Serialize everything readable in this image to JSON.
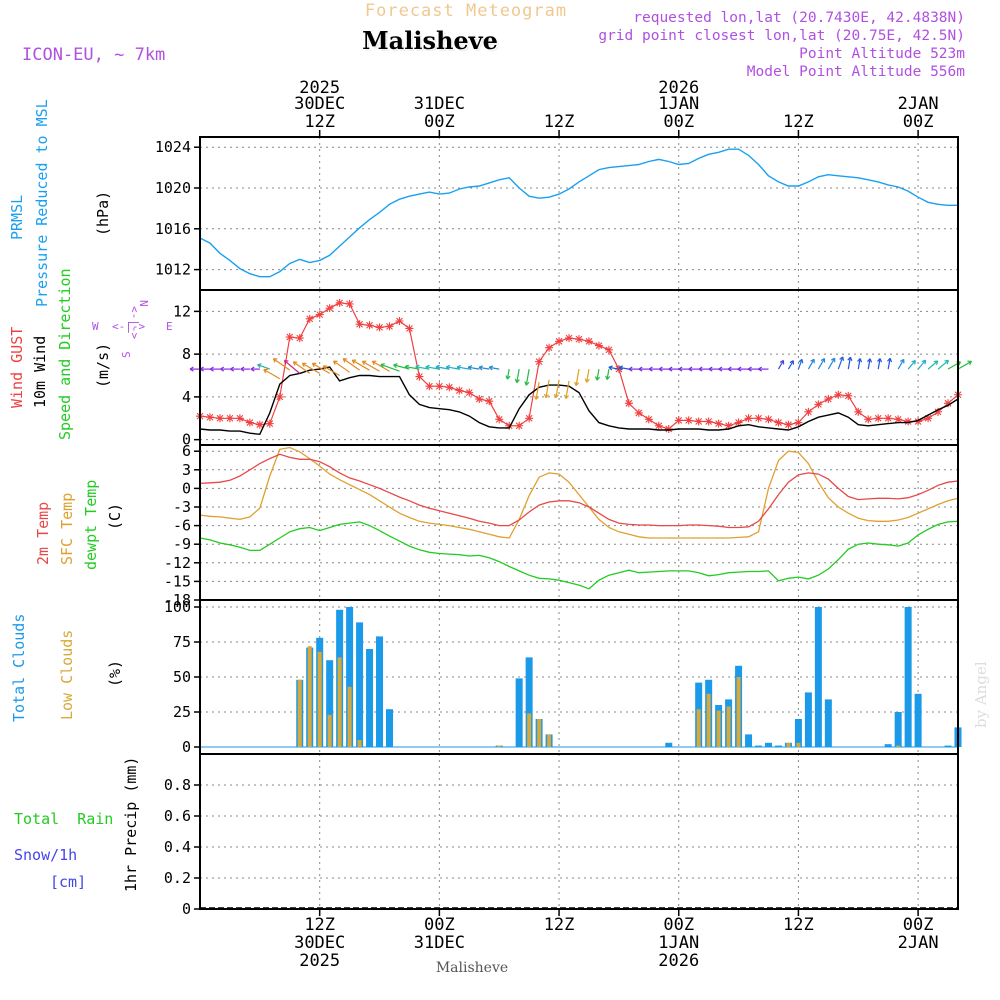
{
  "header": {
    "super_title": "Forecast Meteogram",
    "location": "Malisheve",
    "model": "ICON-EU, ~ 7km",
    "requested": "requested lon,lat (20.7430E, 42.4838N)",
    "gridpoint": "grid point closest lon,lat (20.75E, 42.5N)",
    "point_alt": "Point Altitude 523m",
    "model_alt": "Model Point Altitude 556m",
    "footer_location": "Malisheve",
    "watermark": "by Angel"
  },
  "colors": {
    "pressure": "#1aa0f0",
    "gust": "#f04040",
    "wind": "#000000",
    "wind_label": "#22cc22",
    "temp2m": "#e84848",
    "sfc": "#e0a030",
    "dewpt": "#22cc22",
    "total_cloud": "#1a9ae8",
    "low_cloud": "#d8a838",
    "rain": "#22cc22",
    "snow": "#4444ee",
    "meta": "#b050e0",
    "grid": "#888888"
  },
  "time_axis": {
    "top_ticks": [
      {
        "h": 12,
        "l1": "2025",
        "l2": "30DEC",
        "l3": "12Z"
      },
      {
        "h": 24,
        "l1": "",
        "l2": "31DEC",
        "l3": "00Z"
      },
      {
        "h": 36,
        "l1": "",
        "l2": "",
        "l3": "12Z"
      },
      {
        "h": 48,
        "l1": "2026",
        "l2": "1JAN",
        "l3": "00Z"
      },
      {
        "h": 60,
        "l1": "",
        "l2": "",
        "l3": "12Z"
      },
      {
        "h": 72,
        "l1": "",
        "l2": "2JAN",
        "l3": "00Z"
      }
    ],
    "bottom_ticks": [
      {
        "h": 12,
        "l1": "12Z",
        "l2": "30DEC",
        "l3": "2025"
      },
      {
        "h": 24,
        "l1": "00Z",
        "l2": "31DEC",
        "l3": ""
      },
      {
        "h": 36,
        "l1": "12Z",
        "l2": "",
        "l3": ""
      },
      {
        "h": 48,
        "l1": "00Z",
        "l2": "1JAN",
        "l3": "2026"
      },
      {
        "h": 60,
        "l1": "12Z",
        "l2": "",
        "l3": ""
      },
      {
        "h": 72,
        "l1": "00Z",
        "l2": "2JAN",
        "l3": ""
      }
    ],
    "start_hour": 0,
    "end_hour": 76
  },
  "labels": {
    "pressure": [
      "PRMSL",
      "Pressure Reduced to MSL",
      "(hPa)"
    ],
    "wind": [
      "Wind GUST",
      "10m Wind",
      "Speed and Direction",
      "(m/s)"
    ],
    "compass": {
      "n": "N",
      "s": "S",
      "w": "W",
      "e": "E",
      "arrows": "<-|->"
    },
    "temp": [
      "2m Temp",
      "SFC Temp",
      "dewpt Temp",
      "(C)"
    ],
    "cloud": [
      "Total Clouds",
      "Low Clouds",
      "(%)"
    ],
    "precip": [
      "Total  Rain",
      "Snow/1h",
      "[cm]",
      "1hr Precip (mm)"
    ]
  },
  "chart_data": [
    {
      "type": "line",
      "title": "PRMSL Pressure Reduced to MSL",
      "ylabel": "hPa",
      "ylim": [
        1010,
        1025
      ],
      "yticks": [
        1012,
        1016,
        1020,
        1024
      ],
      "x": [
        0,
        1,
        2,
        3,
        4,
        5,
        6,
        7,
        8,
        9,
        10,
        11,
        12,
        13,
        14,
        15,
        16,
        17,
        18,
        19,
        20,
        21,
        22,
        23,
        24,
        25,
        26,
        27,
        28,
        29,
        30,
        31,
        32,
        33,
        34,
        35,
        36,
        37,
        38,
        39,
        40,
        41,
        42,
        43,
        44,
        45,
        46,
        47,
        48,
        49,
        50,
        51,
        52,
        53,
        54,
        55,
        56,
        57,
        58,
        59,
        60,
        61,
        62,
        63,
        64,
        65,
        66,
        67,
        68,
        69,
        70,
        71,
        72,
        73,
        74,
        75,
        76
      ],
      "series": [
        {
          "name": "PRMSL",
          "values": [
            1015.1,
            1014.6,
            1013.6,
            1012.9,
            1012.1,
            1011.6,
            1011.3,
            1011.3,
            1011.8,
            1012.6,
            1013.0,
            1012.7,
            1012.9,
            1013.4,
            1014.3,
            1015.2,
            1016.1,
            1016.9,
            1017.6,
            1018.4,
            1018.9,
            1019.2,
            1019.4,
            1019.6,
            1019.4,
            1019.5,
            1019.9,
            1020.1,
            1020.2,
            1020.5,
            1020.8,
            1021.0,
            1020.0,
            1019.2,
            1019.0,
            1019.1,
            1019.4,
            1019.9,
            1020.6,
            1021.2,
            1021.8,
            1022.0,
            1022.1,
            1022.2,
            1022.3,
            1022.6,
            1022.8,
            1022.6,
            1022.3,
            1022.4,
            1022.9,
            1023.3,
            1023.5,
            1023.8,
            1023.8,
            1023.2,
            1022.3,
            1021.2,
            1020.6,
            1020.2,
            1020.2,
            1020.6,
            1021.1,
            1021.3,
            1021.2,
            1021.1,
            1021.0,
            1020.8,
            1020.6,
            1020.3,
            1020.1,
            1019.7,
            1019.1,
            1018.6,
            1018.4,
            1018.3,
            1018.3
          ]
        }
      ]
    },
    {
      "type": "line",
      "title": "Wind GUST / 10m Wind Speed and Direction",
      "ylabel": "m/s",
      "ylim": [
        -0.5,
        14
      ],
      "yticks": [
        0,
        4,
        8,
        12
      ],
      "x": [
        0,
        1,
        2,
        3,
        4,
        5,
        6,
        7,
        8,
        9,
        10,
        11,
        12,
        13,
        14,
        15,
        16,
        17,
        18,
        19,
        20,
        21,
        22,
        23,
        24,
        25,
        26,
        27,
        28,
        29,
        30,
        31,
        32,
        33,
        34,
        35,
        36,
        37,
        38,
        39,
        40,
        41,
        42,
        43,
        44,
        45,
        46,
        47,
        48,
        49,
        50,
        51,
        52,
        53,
        54,
        55,
        56,
        57,
        58,
        59,
        60,
        61,
        62,
        63,
        64,
        65,
        66,
        67,
        68,
        69,
        70,
        71,
        72,
        73,
        74,
        75,
        76
      ],
      "series": [
        {
          "name": "Wind GUST",
          "values": [
            2.2,
            2.1,
            2.0,
            2.0,
            2.0,
            1.6,
            1.4,
            1.5,
            4.0,
            9.6,
            9.5,
            11.3,
            11.7,
            12.3,
            12.8,
            12.7,
            10.8,
            10.7,
            10.5,
            10.6,
            11.1,
            10.4,
            5.9,
            5.0,
            5.0,
            4.9,
            4.6,
            4.4,
            3.8,
            3.6,
            1.9,
            1.3,
            1.3,
            2.0,
            7.3,
            8.6,
            9.2,
            9.5,
            9.4,
            9.2,
            8.8,
            8.4,
            6.6,
            3.4,
            2.5,
            1.9,
            1.3,
            1.0,
            1.8,
            1.8,
            1.7,
            1.7,
            1.5,
            1.3,
            1.6,
            2.0,
            2.0,
            1.9,
            1.6,
            1.4,
            1.6,
            2.6,
            3.3,
            3.8,
            4.2,
            4.1,
            2.6,
            1.9,
            2.0,
            2.0,
            1.9,
            1.7,
            1.7,
            2.0,
            2.6,
            3.4,
            4.2
          ]
        },
        {
          "name": "10m Wind",
          "values": [
            1.0,
            0.9,
            0.9,
            0.8,
            0.8,
            0.6,
            0.5,
            2.5,
            5.2,
            6.0,
            6.2,
            6.5,
            6.6,
            6.8,
            5.5,
            5.8,
            6.0,
            6.0,
            5.9,
            5.9,
            5.9,
            4.2,
            3.3,
            3.0,
            2.9,
            2.8,
            2.6,
            2.2,
            1.6,
            1.2,
            1.1,
            1.1,
            2.9,
            4.2,
            4.9,
            5.1,
            5.1,
            5.0,
            4.4,
            2.7,
            1.6,
            1.3,
            1.1,
            1.0,
            1.0,
            1.0,
            0.9,
            0.9,
            1.0,
            1.0,
            1.0,
            0.9,
            0.9,
            1.0,
            1.3,
            1.4,
            1.2,
            1.1,
            1.0,
            0.9,
            1.2,
            1.7,
            2.1,
            2.3,
            2.5,
            2.1,
            1.4,
            1.3,
            1.4,
            1.5,
            1.6,
            1.6,
            1.8,
            2.3,
            2.8,
            3.2,
            3.8
          ]
        }
      ]
    },
    {
      "type": "line",
      "title": "2m Temp / SFC Temp / dewpt Temp",
      "ylabel": "C",
      "ylim": [
        -18,
        7
      ],
      "yticks": [
        -18,
        -15,
        -12,
        -9,
        -6,
        -3,
        0,
        3,
        6
      ],
      "x": [
        0,
        1,
        2,
        3,
        4,
        5,
        6,
        7,
        8,
        9,
        10,
        11,
        12,
        13,
        14,
        15,
        16,
        17,
        18,
        19,
        20,
        21,
        22,
        23,
        24,
        25,
        26,
        27,
        28,
        29,
        30,
        31,
        32,
        33,
        34,
        35,
        36,
        37,
        38,
        39,
        40,
        41,
        42,
        43,
        44,
        45,
        46,
        47,
        48,
        49,
        50,
        51,
        52,
        53,
        54,
        55,
        56,
        57,
        58,
        59,
        60,
        61,
        62,
        63,
        64,
        65,
        66,
        67,
        68,
        69,
        70,
        71,
        72,
        73,
        74,
        75,
        76
      ],
      "series": [
        {
          "name": "2m Temp",
          "values": [
            0.8,
            0.9,
            1.0,
            1.3,
            2.0,
            3.0,
            4.0,
            4.8,
            5.5,
            5.0,
            4.7,
            4.7,
            4.3,
            3.5,
            2.5,
            1.7,
            1.2,
            0.6,
            0.0,
            -0.7,
            -1.4,
            -2.0,
            -2.7,
            -3.2,
            -3.6,
            -4.0,
            -4.4,
            -4.8,
            -5.3,
            -5.6,
            -6.0,
            -6.0,
            -5.1,
            -3.8,
            -2.7,
            -2.2,
            -2.0,
            -2.0,
            -2.3,
            -3.0,
            -4.0,
            -5.0,
            -5.6,
            -5.8,
            -5.9,
            -5.9,
            -6.0,
            -6.0,
            -6.0,
            -5.9,
            -5.9,
            -6.0,
            -6.1,
            -6.3,
            -6.3,
            -6.2,
            -5.3,
            -3.3,
            -1.0,
            1.0,
            2.2,
            2.5,
            2.3,
            1.5,
            0.0,
            -1.3,
            -1.8,
            -1.7,
            -1.6,
            -1.6,
            -1.7,
            -1.5,
            -1.0,
            -0.3,
            0.5,
            1.0,
            1.2
          ]
        },
        {
          "name": "SFC Temp",
          "values": [
            -4.3,
            -4.5,
            -4.6,
            -4.8,
            -5.0,
            -4.6,
            -3.2,
            2.0,
            6.3,
            6.6,
            5.9,
            4.8,
            3.6,
            2.3,
            1.4,
            0.6,
            -0.2,
            -1.0,
            -2.0,
            -3.0,
            -4.0,
            -4.7,
            -5.3,
            -5.6,
            -5.8,
            -6.0,
            -6.3,
            -6.6,
            -7.0,
            -7.4,
            -7.8,
            -8.0,
            -5.0,
            -1.2,
            1.8,
            2.5,
            2.3,
            1.0,
            -1.0,
            -3.0,
            -5.0,
            -6.3,
            -7.0,
            -7.4,
            -7.8,
            -8.0,
            -8.0,
            -8.0,
            -8.0,
            -8.0,
            -8.0,
            -8.0,
            -8.0,
            -8.0,
            -7.9,
            -7.8,
            -7.0,
            0.0,
            4.5,
            6.0,
            5.8,
            4.0,
            1.0,
            -1.5,
            -3.0,
            -4.0,
            -4.8,
            -5.2,
            -5.3,
            -5.3,
            -5.1,
            -4.7,
            -4.0,
            -3.3,
            -2.6,
            -2.0,
            -1.6
          ]
        },
        {
          "name": "dewpt Temp",
          "values": [
            -8.0,
            -8.3,
            -8.8,
            -9.1,
            -9.5,
            -10.0,
            -10.0,
            -9.0,
            -8.0,
            -7.0,
            -6.5,
            -6.3,
            -6.8,
            -6.3,
            -5.8,
            -5.6,
            -5.4,
            -6.0,
            -6.8,
            -7.7,
            -8.5,
            -9.3,
            -9.9,
            -10.3,
            -10.5,
            -10.6,
            -10.7,
            -10.9,
            -10.8,
            -11.2,
            -11.8,
            -12.6,
            -13.3,
            -14.0,
            -14.5,
            -14.6,
            -14.8,
            -15.2,
            -15.6,
            -16.2,
            -14.8,
            -14.0,
            -13.6,
            -13.2,
            -13.6,
            -13.5,
            -13.4,
            -13.3,
            -13.3,
            -13.3,
            -13.6,
            -14.1,
            -13.9,
            -13.6,
            -13.5,
            -13.4,
            -13.4,
            -13.3,
            -14.9,
            -14.5,
            -14.3,
            -14.6,
            -14.0,
            -13.0,
            -11.5,
            -9.8,
            -9.0,
            -8.8,
            -9.0,
            -9.1,
            -9.3,
            -8.8,
            -7.5,
            -6.6,
            -5.8,
            -5.4,
            -5.3
          ]
        }
      ]
    },
    {
      "type": "bar",
      "title": "Total Clouds / Low Clouds",
      "ylabel": "%",
      "ylim": [
        -5,
        105
      ],
      "yticks": [
        0,
        25,
        50,
        75,
        100
      ],
      "x": [
        0,
        1,
        2,
        3,
        4,
        5,
        6,
        7,
        8,
        9,
        10,
        11,
        12,
        13,
        14,
        15,
        16,
        17,
        18,
        19,
        20,
        21,
        22,
        23,
        24,
        25,
        26,
        27,
        28,
        29,
        30,
        31,
        32,
        33,
        34,
        35,
        36,
        37,
        38,
        39,
        40,
        41,
        42,
        43,
        44,
        45,
        46,
        47,
        48,
        49,
        50,
        51,
        52,
        53,
        54,
        55,
        56,
        57,
        58,
        59,
        60,
        61,
        62,
        63,
        64,
        65,
        66,
        67,
        68,
        69,
        70,
        71,
        72,
        73,
        74,
        75,
        76
      ],
      "series": [
        {
          "name": "Total Clouds",
          "values": [
            0,
            0,
            0,
            0,
            0,
            0,
            0,
            0,
            0,
            0,
            48,
            71,
            78,
            62,
            98,
            100,
            89,
            70,
            79,
            27,
            0,
            0,
            0,
            0,
            0,
            0,
            0,
            0,
            0,
            0,
            1,
            0,
            49,
            64,
            20,
            9,
            0,
            0,
            0,
            0,
            0,
            0,
            0,
            0,
            0,
            0,
            0,
            3,
            0,
            0,
            46,
            48,
            30,
            34,
            58,
            9,
            1,
            3,
            1,
            3,
            20,
            39,
            100,
            34,
            0,
            0,
            0,
            0,
            0,
            2,
            25,
            100,
            38,
            0,
            0,
            1,
            14
          ]
        },
        {
          "name": "Low Clouds",
          "values": [
            0,
            0,
            0,
            0,
            0,
            0,
            0,
            0,
            0,
            0,
            48,
            72,
            68,
            23,
            64,
            43,
            5,
            0,
            0,
            0,
            0,
            0,
            0,
            0,
            0,
            0,
            0,
            0,
            0,
            0,
            1,
            0,
            0,
            24,
            20,
            9,
            0,
            0,
            0,
            0,
            0,
            0,
            0,
            0,
            0,
            0,
            0,
            0,
            0,
            0,
            27,
            38,
            26,
            29,
            50,
            0,
            0,
            0,
            0,
            3,
            3,
            0,
            0,
            0,
            0,
            0,
            0,
            0,
            0,
            0,
            1,
            0,
            0,
            0,
            0,
            0,
            0
          ]
        }
      ]
    },
    {
      "type": "bar",
      "title": "1hr Precip",
      "ylabel": "1hr Precip (mm)",
      "ylim": [
        0,
        1.0
      ],
      "yticks": [
        0,
        0.2,
        0.4,
        0.6,
        0.8
      ],
      "ytick_labels": [
        "0",
        "0.2",
        "0.4",
        "0.6",
        "0.8"
      ],
      "series": [
        {
          "name": "Total Rain",
          "values": []
        },
        {
          "name": "Snow/1h",
          "values": []
        }
      ]
    }
  ]
}
